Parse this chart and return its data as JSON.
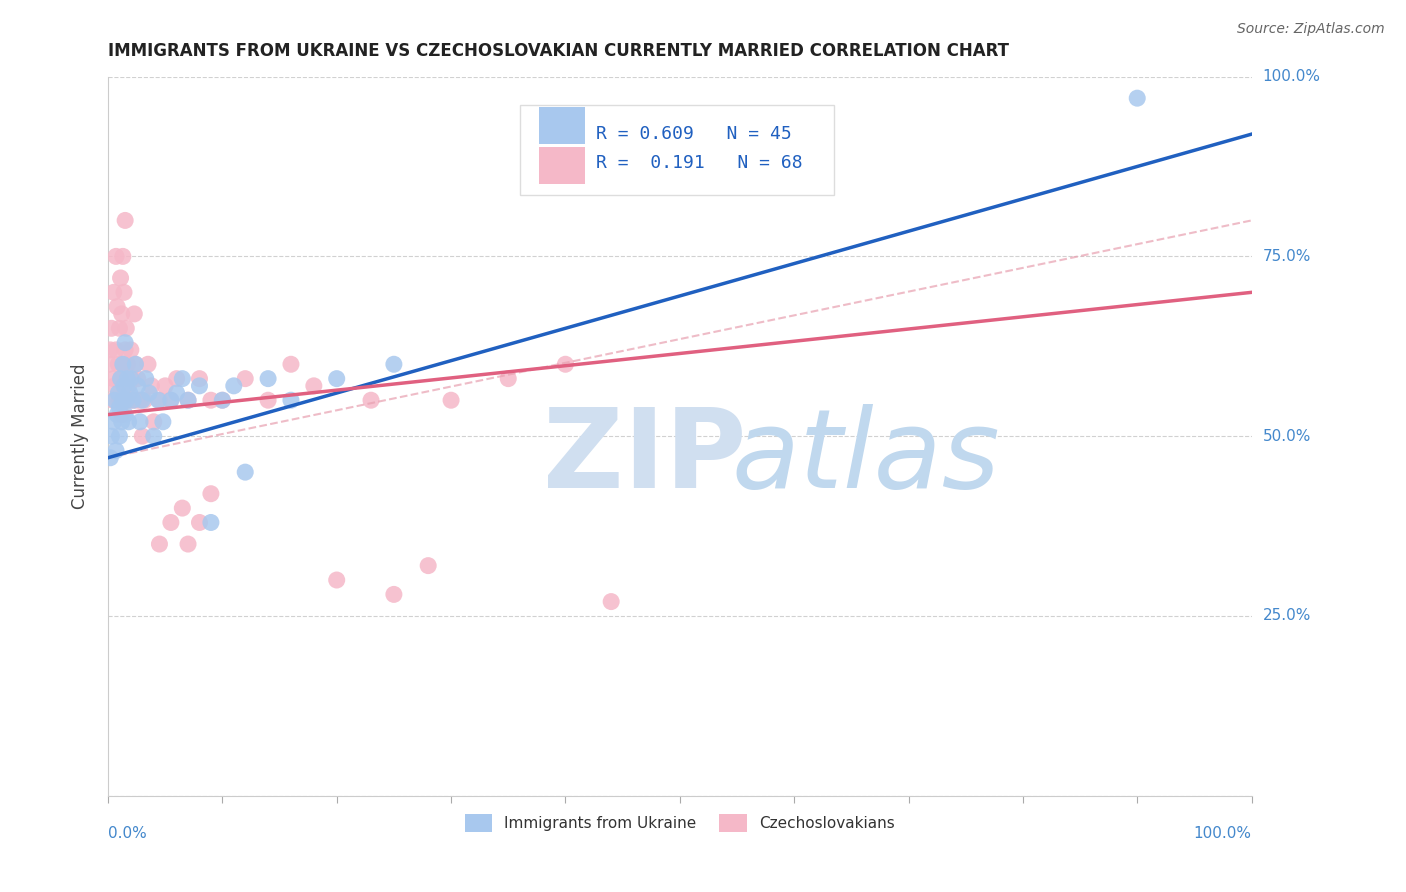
{
  "title": "IMMIGRANTS FROM UKRAINE VS CZECHOSLOVAKIAN CURRENTLY MARRIED CORRELATION CHART",
  "source": "Source: ZipAtlas.com",
  "legend_blue_label": "Immigrants from Ukraine",
  "legend_pink_label": "Czechoslovakians",
  "ylabel": "Currently Married",
  "R_blue": 0.609,
  "N_blue": 45,
  "R_pink": 0.191,
  "N_pink": 68,
  "blue_color": "#a8c8ee",
  "pink_color": "#f5b8c8",
  "blue_line_color": "#2060c0",
  "pink_line_color": "#e06080",
  "dash_line_color": "#e8a0b0",
  "blue_trend": [
    0.0,
    0.47,
    1.0,
    0.92
  ],
  "pink_trend": [
    0.0,
    0.53,
    1.0,
    0.7
  ],
  "dash_trend": [
    0.0,
    0.47,
    1.0,
    0.8
  ],
  "blue_scatter_x": [
    0.002,
    0.003,
    0.005,
    0.006,
    0.007,
    0.008,
    0.009,
    0.01,
    0.01,
    0.011,
    0.012,
    0.013,
    0.013,
    0.014,
    0.015,
    0.015,
    0.016,
    0.017,
    0.018,
    0.019,
    0.02,
    0.022,
    0.024,
    0.026,
    0.028,
    0.03,
    0.033,
    0.036,
    0.04,
    0.044,
    0.048,
    0.055,
    0.06,
    0.065,
    0.07,
    0.08,
    0.09,
    0.1,
    0.11,
    0.12,
    0.14,
    0.16,
    0.2,
    0.25,
    0.9
  ],
  "blue_scatter_y": [
    0.47,
    0.5,
    0.52,
    0.55,
    0.48,
    0.53,
    0.56,
    0.5,
    0.54,
    0.58,
    0.52,
    0.55,
    0.6,
    0.57,
    0.53,
    0.63,
    0.55,
    0.58,
    0.52,
    0.56,
    0.58,
    0.55,
    0.6,
    0.57,
    0.52,
    0.55,
    0.58,
    0.56,
    0.5,
    0.55,
    0.52,
    0.55,
    0.56,
    0.58,
    0.55,
    0.57,
    0.38,
    0.55,
    0.57,
    0.45,
    0.58,
    0.55,
    0.58,
    0.6,
    0.97
  ],
  "pink_scatter_x": [
    0.001,
    0.002,
    0.003,
    0.004,
    0.005,
    0.005,
    0.006,
    0.007,
    0.007,
    0.008,
    0.009,
    0.01,
    0.01,
    0.011,
    0.011,
    0.012,
    0.012,
    0.013,
    0.013,
    0.014,
    0.014,
    0.015,
    0.015,
    0.015,
    0.016,
    0.016,
    0.017,
    0.018,
    0.019,
    0.02,
    0.021,
    0.022,
    0.023,
    0.024,
    0.025,
    0.026,
    0.028,
    0.03,
    0.032,
    0.035,
    0.038,
    0.04,
    0.045,
    0.05,
    0.055,
    0.06,
    0.07,
    0.08,
    0.09,
    0.1,
    0.12,
    0.14,
    0.16,
    0.18,
    0.2,
    0.23,
    0.25,
    0.28,
    0.3,
    0.35,
    0.4,
    0.44,
    0.045,
    0.055,
    0.065,
    0.07,
    0.08,
    0.09
  ],
  "pink_scatter_y": [
    0.6,
    0.62,
    0.65,
    0.55,
    0.58,
    0.7,
    0.57,
    0.62,
    0.75,
    0.68,
    0.6,
    0.55,
    0.65,
    0.72,
    0.58,
    0.53,
    0.67,
    0.6,
    0.75,
    0.55,
    0.7,
    0.57,
    0.62,
    0.8,
    0.55,
    0.65,
    0.6,
    0.57,
    0.55,
    0.62,
    0.58,
    0.55,
    0.67,
    0.6,
    0.55,
    0.58,
    0.55,
    0.5,
    0.55,
    0.6,
    0.57,
    0.52,
    0.55,
    0.57,
    0.55,
    0.58,
    0.55,
    0.58,
    0.55,
    0.55,
    0.58,
    0.55,
    0.6,
    0.57,
    0.3,
    0.55,
    0.28,
    0.32,
    0.55,
    0.58,
    0.6,
    0.27,
    0.35,
    0.38,
    0.4,
    0.35,
    0.38,
    0.42
  ]
}
